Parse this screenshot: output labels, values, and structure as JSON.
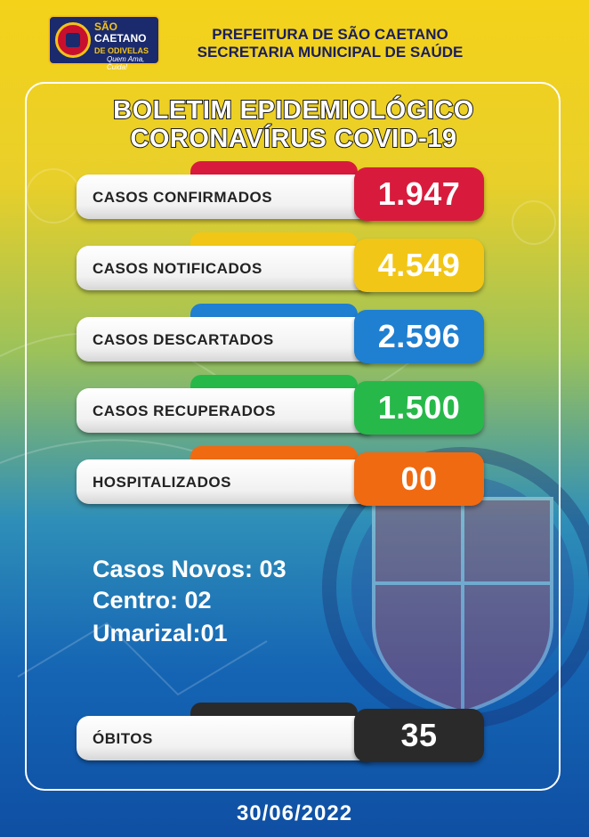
{
  "header": {
    "logo": {
      "line1": "SÃO",
      "line2": "CAETANO",
      "line3": "DE ODIVELAS",
      "slogan": "Quem Ama, Cuida!",
      "icon": "city-crest-icon"
    },
    "line1": "PREFEITURA DE SÃO CAETANO",
    "line2": "SECRETARIA MUNICIPAL DE SAÚDE"
  },
  "title": {
    "line1": "BOLETIM EPIDEMIOLÓGICO",
    "line2": "CORONAVÍRUS COVID-19"
  },
  "stats": [
    {
      "label": "CASOS CONFIRMADOS",
      "value": "1.947",
      "color": "#d81b3c"
    },
    {
      "label": "CASOS NOTIFICADOS",
      "value": "4.549",
      "color": "#f2c616"
    },
    {
      "label": "CASOS DESCARTADOS",
      "value": "2.596",
      "color": "#1f7fd0"
    },
    {
      "label": "CASOS RECUPERADOS",
      "value": "1.500",
      "color": "#27b84a"
    },
    {
      "label": "HOSPITALIZADOS",
      "value": "00",
      "color": "#f06a12"
    }
  ],
  "novos": {
    "line1": "Casos Novos: 03",
    "line2": "Centro: 02",
    "line3": "Umarizal:01"
  },
  "obitos": {
    "label": "ÓBITOS",
    "value": "35",
    "color": "#2a2a2a"
  },
  "date": "30/06/2022",
  "colors": {
    "background_top": "#f4d21a",
    "background_bottom": "#0f4fa3",
    "header_text": "#1a1e5c"
  }
}
